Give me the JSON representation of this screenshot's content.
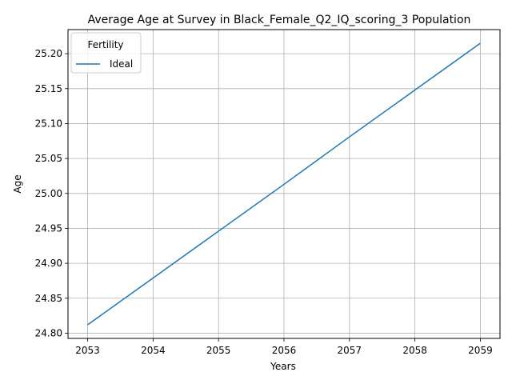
{
  "chart_data": {
    "type": "line",
    "title": "Average Age at Survey in Black_Female_Q2_IQ_scoring_3 Population",
    "xlabel": "Years",
    "ylabel": "Age",
    "x": [
      2053,
      2054,
      2055,
      2056,
      2057,
      2058,
      2059
    ],
    "xticks": [
      "2053",
      "2054",
      "2055",
      "2056",
      "2057",
      "2058",
      "2059"
    ],
    "yticks": [
      "24.80",
      "24.85",
      "24.90",
      "24.95",
      "25.00",
      "25.05",
      "25.10",
      "25.15",
      "25.20"
    ],
    "ylim": [
      24.7925,
      25.2345
    ],
    "xlim": [
      2052.7,
      2059.3
    ],
    "grid": true,
    "legend": {
      "title": "Fertility",
      "placement": "top-left"
    },
    "series": [
      {
        "name": "Ideal",
        "color": "#1f77b4",
        "values": [
          24.812,
          24.879,
          24.946,
          25.013,
          25.081,
          25.148,
          25.215
        ]
      }
    ]
  }
}
